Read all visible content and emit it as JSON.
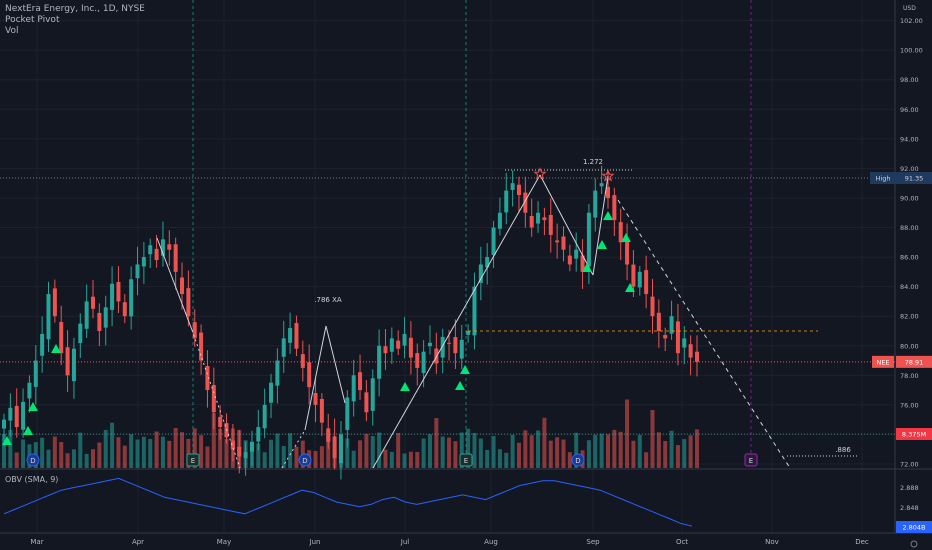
{
  "legend": {
    "symbol_line": "NextEra Energy, Inc., 1D, NYSE",
    "indicator": "Pocket Pivot",
    "volume": "Vol",
    "obv": "OBV (SMA, 9)"
  },
  "currency": "USD",
  "colors": {
    "background": "#131722",
    "up": "#26a69a",
    "down": "#ef5350",
    "grid": "#1e222d",
    "obv": "#2962ff",
    "pattern": "#d1d4dc",
    "signal": "#00e676",
    "high_label": "#1e3a5f",
    "price_label": "#ef5350",
    "volume_label": "#f23645",
    "obv_label": "#2962ff"
  },
  "price_axis": {
    "ticks": [
      "102.00",
      "100.00",
      "98.00",
      "96.00",
      "94.00",
      "92.00",
      "90.00",
      "88.00",
      "86.00",
      "84.00",
      "82.00",
      "80.00",
      "78.00",
      "76.00",
      "74.00",
      "72.00"
    ],
    "high_label": "High",
    "high_value": "91.35",
    "last_label": "NEE",
    "last_value": "78.91",
    "volume_value": "8.375M"
  },
  "obv_axis": {
    "ticks": [
      "2.888",
      "2.848"
    ],
    "last_value": "2.804B"
  },
  "time_axis": [
    "Mar",
    "Apr",
    "May",
    "Jun",
    "Jul",
    "Aug",
    "Sep",
    "Oct",
    "Nov",
    "Dec"
  ],
  "annotations": {
    "xa_label": ".786 XA",
    "ext_label": "1.272",
    "target_label": ".886"
  },
  "event_markers": [
    "D",
    "E",
    "D",
    "E",
    "D",
    "E"
  ],
  "chart_data": {
    "type": "candlestick",
    "series_kind": "daily OHLC",
    "x_range": [
      "Feb",
      "Dec"
    ],
    "ylim": [
      72,
      103
    ],
    "reference_levels": {
      "high": 91.35,
      "last": 78.91
    },
    "closes": [
      75.0,
      75.8,
      74.5,
      76.2,
      77.5,
      79.0,
      80.8,
      83.5,
      82.0,
      79.5,
      78.0,
      79.8,
      81.5,
      83.0,
      82.5,
      81.0,
      82.6,
      84.2,
      83.0,
      82.0,
      84.5,
      85.5,
      86.0,
      86.8,
      85.8,
      87.2,
      86.5,
      85.0,
      83.5,
      82.0,
      80.5,
      79.0,
      77.0,
      75.5,
      74.5,
      73.8,
      73.0,
      72.5,
      72.8,
      73.5,
      74.5,
      76.0,
      77.5,
      79.0,
      80.5,
      81.2,
      79.8,
      78.5,
      77.2,
      76.0,
      74.8,
      73.5,
      72.4,
      74.0,
      76.5,
      78.0,
      77.0,
      75.5,
      77.8,
      80.0,
      79.5,
      80.5,
      79.8,
      80.8,
      79.2,
      78.5,
      79.6,
      80.2,
      78.8,
      80.6,
      80.2,
      79.5,
      80.4,
      81.0,
      84.0,
      85.5,
      86.0,
      88.0,
      89.0,
      90.5,
      91.0,
      90.2,
      89.0,
      88.0,
      89.0,
      88.5,
      87.5,
      87.0,
      86.5,
      85.5,
      86.5,
      85.0,
      89.0,
      90.5,
      91.0,
      90.0,
      88.5,
      87.0,
      85.5,
      84.0,
      85.0,
      83.5,
      82.0,
      81.0,
      80.5,
      82.0,
      79.5,
      80.5,
      79.2,
      78.91
    ],
    "obv_range": [
      2.8,
      2.91
    ],
    "obv": [
      2.83,
      2.84,
      2.85,
      2.86,
      2.87,
      2.88,
      2.885,
      2.89,
      2.895,
      2.9,
      2.905,
      2.895,
      2.885,
      2.875,
      2.865,
      2.86,
      2.855,
      2.85,
      2.845,
      2.84,
      2.835,
      2.83,
      2.84,
      2.85,
      2.86,
      2.87,
      2.88,
      2.875,
      2.865,
      2.855,
      2.85,
      2.845,
      2.85,
      2.86,
      2.865,
      2.855,
      2.85,
      2.855,
      2.86,
      2.865,
      2.87,
      2.865,
      2.86,
      2.87,
      2.88,
      2.89,
      2.895,
      2.9,
      2.9,
      2.895,
      2.89,
      2.885,
      2.88,
      2.87,
      2.86,
      2.85,
      2.84,
      2.83,
      2.82,
      2.81,
      2.804
    ]
  }
}
